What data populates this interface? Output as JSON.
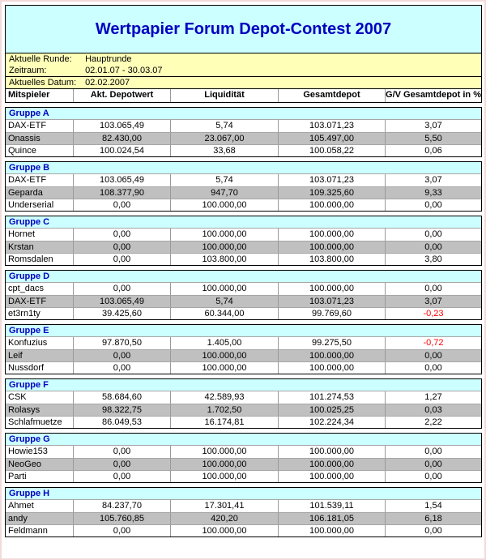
{
  "title": "Wertpapier Forum Depot-Contest 2007",
  "info": {
    "rows": [
      {
        "label": "Aktuelle Runde:",
        "value": "Hauptrunde"
      },
      {
        "label": "Zeitraum:",
        "value": "02.01.07 - 30.03.07"
      },
      {
        "label": "Aktuelles Datum:",
        "value": "02.02.2007"
      }
    ]
  },
  "columns": [
    "Mitspieler",
    "Akt. Depotwert",
    "Liquidität",
    "Gesamtdepot",
    "G/V Gesamtdepot in %"
  ],
  "groups": [
    {
      "name": "Gruppe A",
      "rows": [
        {
          "player": "DAX-ETF",
          "depotwert": "103.065,49",
          "liquiditaet": "5,74",
          "gesamtdepot": "103.071,23",
          "gv": "3,07",
          "gv_negative": false
        },
        {
          "player": "Onassis",
          "depotwert": "82.430,00",
          "liquiditaet": "23.067,00",
          "gesamtdepot": "105.497,00",
          "gv": "5,50",
          "gv_negative": false
        },
        {
          "player": "Quince",
          "depotwert": "100.024,54",
          "liquiditaet": "33,68",
          "gesamtdepot": "100.058,22",
          "gv": "0,06",
          "gv_negative": false
        }
      ]
    },
    {
      "name": "Gruppe B",
      "rows": [
        {
          "player": "DAX-ETF",
          "depotwert": "103.065,49",
          "liquiditaet": "5,74",
          "gesamtdepot": "103.071,23",
          "gv": "3,07",
          "gv_negative": false
        },
        {
          "player": "Geparda",
          "depotwert": "108.377,90",
          "liquiditaet": "947,70",
          "gesamtdepot": "109.325,60",
          "gv": "9,33",
          "gv_negative": false
        },
        {
          "player": "Underserial",
          "depotwert": "0,00",
          "liquiditaet": "100.000,00",
          "gesamtdepot": "100.000,00",
          "gv": "0,00",
          "gv_negative": false
        }
      ]
    },
    {
      "name": "Gruppe C",
      "rows": [
        {
          "player": "Hornet",
          "depotwert": "0,00",
          "liquiditaet": "100.000,00",
          "gesamtdepot": "100.000,00",
          "gv": "0,00",
          "gv_negative": false
        },
        {
          "player": "Krstan",
          "depotwert": "0,00",
          "liquiditaet": "100.000,00",
          "gesamtdepot": "100.000,00",
          "gv": "0,00",
          "gv_negative": false
        },
        {
          "player": "Romsdalen",
          "depotwert": "0,00",
          "liquiditaet": "103.800,00",
          "gesamtdepot": "103.800,00",
          "gv": "3,80",
          "gv_negative": false
        }
      ]
    },
    {
      "name": "Gruppe D",
      "rows": [
        {
          "player": "cpt_dacs",
          "depotwert": "0,00",
          "liquiditaet": "100.000,00",
          "gesamtdepot": "100.000,00",
          "gv": "0,00",
          "gv_negative": false
        },
        {
          "player": "DAX-ETF",
          "depotwert": "103.065,49",
          "liquiditaet": "5,74",
          "gesamtdepot": "103.071,23",
          "gv": "3,07",
          "gv_negative": false
        },
        {
          "player": "et3rn1ty",
          "depotwert": "39.425,60",
          "liquiditaet": "60.344,00",
          "gesamtdepot": "99.769,60",
          "gv": "-0,23",
          "gv_negative": true
        }
      ]
    },
    {
      "name": "Gruppe E",
      "rows": [
        {
          "player": "Konfuzius",
          "depotwert": "97.870,50",
          "liquiditaet": "1.405,00",
          "gesamtdepot": "99.275,50",
          "gv": "-0,72",
          "gv_negative": true
        },
        {
          "player": "Leif",
          "depotwert": "0,00",
          "liquiditaet": "100.000,00",
          "gesamtdepot": "100.000,00",
          "gv": "0,00",
          "gv_negative": false
        },
        {
          "player": "Nussdorf",
          "depotwert": "0,00",
          "liquiditaet": "100.000,00",
          "gesamtdepot": "100.000,00",
          "gv": "0,00",
          "gv_negative": false
        }
      ]
    },
    {
      "name": "Gruppe F",
      "rows": [
        {
          "player": "CSK",
          "depotwert": "58.684,60",
          "liquiditaet": "42.589,93",
          "gesamtdepot": "101.274,53",
          "gv": "1,27",
          "gv_negative": false
        },
        {
          "player": "Rolasys",
          "depotwert": "98.322,75",
          "liquiditaet": "1.702,50",
          "gesamtdepot": "100.025,25",
          "gv": "0,03",
          "gv_negative": false
        },
        {
          "player": "Schlafmuetze",
          "depotwert": "86.049,53",
          "liquiditaet": "16.174,81",
          "gesamtdepot": "102.224,34",
          "gv": "2,22",
          "gv_negative": false
        }
      ]
    },
    {
      "name": "Gruppe G",
      "rows": [
        {
          "player": "Howie153",
          "depotwert": "0,00",
          "liquiditaet": "100.000,00",
          "gesamtdepot": "100.000,00",
          "gv": "0,00",
          "gv_negative": false
        },
        {
          "player": "NeoGeo",
          "depotwert": "0,00",
          "liquiditaet": "100.000,00",
          "gesamtdepot": "100.000,00",
          "gv": "0,00",
          "gv_negative": false
        },
        {
          "player": "Parti",
          "depotwert": "0,00",
          "liquiditaet": "100.000,00",
          "gesamtdepot": "100.000,00",
          "gv": "0,00",
          "gv_negative": false
        }
      ]
    },
    {
      "name": "Gruppe H",
      "rows": [
        {
          "player": "Ahmet",
          "depotwert": "84.237,70",
          "liquiditaet": "17.301,41",
          "gesamtdepot": "101.539,11",
          "gv": "1,54",
          "gv_negative": false
        },
        {
          "player": "andy",
          "depotwert": "105.760,85",
          "liquiditaet": "420,20",
          "gesamtdepot": "106.181,05",
          "gv": "6,18",
          "gv_negative": false
        },
        {
          "player": "Feldmann",
          "depotwert": "0,00",
          "liquiditaet": "100.000,00",
          "gesamtdepot": "100.000,00",
          "gv": "0,00",
          "gv_negative": false
        }
      ]
    }
  ],
  "colors": {
    "title_text": "#0000c0",
    "accent_cyan": "#ccffff",
    "info_yellow": "#ffffb8",
    "row_alt_gray": "#c0c0c0",
    "negative_red": "#ff0000",
    "frame_pink": "#f3dada"
  }
}
